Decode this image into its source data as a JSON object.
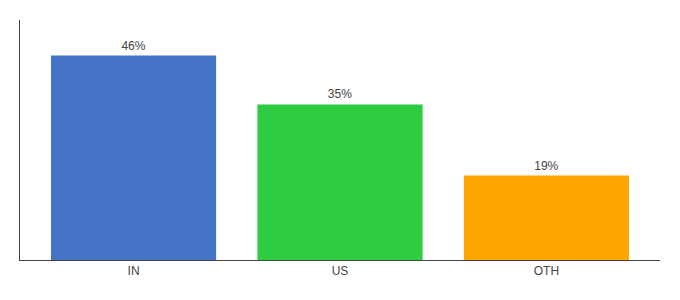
{
  "chart_data": {
    "type": "bar",
    "categories": [
      "IN",
      "US",
      "OTH"
    ],
    "values": [
      46,
      35,
      19
    ],
    "value_labels": [
      "46%",
      "35%",
      "19%"
    ],
    "data_labels": true,
    "colors": [
      "#4472C4",
      "#2ECC40",
      "#FFA500"
    ],
    "ylim": [
      0,
      54
    ],
    "tick_labels": "x",
    "grid": false
  }
}
